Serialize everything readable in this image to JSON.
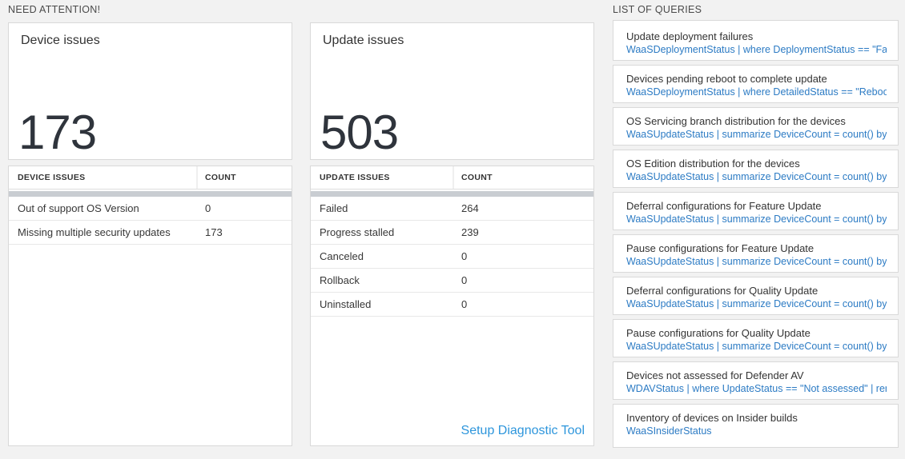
{
  "need_attention": {
    "section_title": "NEED ATTENTION!",
    "device_panel": {
      "title": "Device issues",
      "count": "173",
      "table_headers": {
        "issue": "DEVICE ISSUES",
        "count": "COUNT"
      },
      "rows": [
        {
          "label": "Out of support OS Version",
          "count": "0"
        },
        {
          "label": "Missing multiple security updates",
          "count": "173"
        }
      ]
    },
    "update_panel": {
      "title": "Update issues",
      "count": "503",
      "table_headers": {
        "issue": "UPDATE ISSUES",
        "count": "COUNT"
      },
      "rows": [
        {
          "label": "Failed",
          "count": "264"
        },
        {
          "label": "Progress stalled",
          "count": "239"
        },
        {
          "label": "Canceled",
          "count": "0"
        },
        {
          "label": "Rollback",
          "count": "0"
        },
        {
          "label": "Uninstalled",
          "count": "0"
        }
      ],
      "setup_link": "Setup Diagnostic Tool"
    }
  },
  "list_of_queries": {
    "section_title": "LIST OF QUERIES",
    "items": [
      {
        "title": "Update deployment failures",
        "query": "WaaSDeploymentStatus | where DeploymentStatus == \"Failed\" |..."
      },
      {
        "title": "Devices pending reboot to complete update",
        "query": "WaaSDeploymentStatus | where DetailedStatus == \"Reboot pend..."
      },
      {
        "title": "OS Servicing branch distribution for the devices",
        "query": "WaaSUpdateStatus | summarize DeviceCount = count() by OSSer..."
      },
      {
        "title": "OS Edition distribution for the devices",
        "query": "WaaSUpdateStatus | summarize DeviceCount = count() by OSEdit..."
      },
      {
        "title": "Deferral configurations for Feature Update",
        "query": "WaaSUpdateStatus | summarize DeviceCount = count() by Featur..."
      },
      {
        "title": "Pause configurations for Feature Update",
        "query": "WaaSUpdateStatus | summarize DeviceCount = count() by Featur..."
      },
      {
        "title": "Deferral configurations for Quality Update",
        "query": "WaaSUpdateStatus | summarize DeviceCount = count() by Qualit..."
      },
      {
        "title": "Pause configurations for Quality Update",
        "query": "WaaSUpdateStatus | summarize DeviceCount = count() by Qualit..."
      },
      {
        "title": "Devices not assessed for Defender AV",
        "query": "WDAVStatus | where UpdateStatus == \"Not assessed\" | render ta..."
      },
      {
        "title": "Inventory of devices on Insider builds",
        "query": "WaaSInsiderStatus"
      }
    ]
  },
  "colors": {
    "page_background": "#f2f2f2",
    "card_border": "#d9d9d9",
    "big_number": "#2f343c",
    "query_link_blue": "#2c7bc4",
    "action_link_blue": "#2e96dc",
    "scrollbar_gray": "#c9cdd2"
  }
}
